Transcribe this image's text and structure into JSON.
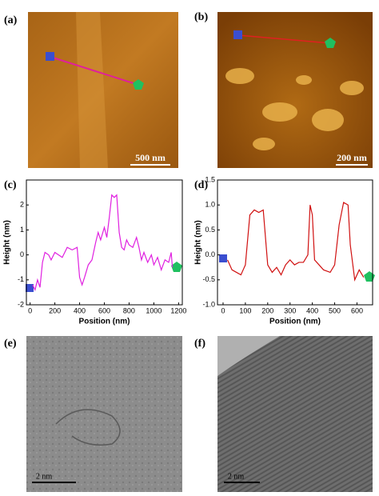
{
  "panels": [
    {
      "label": "(a)",
      "scale_bar": "500 nm"
    },
    {
      "label": "(b)",
      "scale_bar": "200 nm"
    },
    {
      "label": "(c)"
    },
    {
      "label": "(d)"
    },
    {
      "label": "(e)",
      "scale_bar": "2 nm"
    },
    {
      "label": "(f)",
      "scale_bar": "2 nm"
    }
  ],
  "chart_data": [
    {
      "type": "line",
      "xlabel": "Position (nm)",
      "ylabel": "Height (nm)",
      "x": [
        20,
        40,
        60,
        80,
        100,
        120,
        150,
        170,
        200,
        230,
        260,
        300,
        340,
        380,
        400,
        420,
        440,
        470,
        500,
        530,
        550,
        570,
        600,
        620,
        640,
        660,
        680,
        700,
        720,
        740,
        760,
        780,
        800,
        830,
        860,
        880,
        900,
        920,
        950,
        980,
        1000,
        1030,
        1060,
        1090,
        1120,
        1140,
        1150
      ],
      "series": [
        {
          "color": "#e020e0",
          "values": [
            -1.2,
            -1.4,
            -1.0,
            -1.3,
            -0.3,
            0.1,
            0.0,
            -0.2,
            0.1,
            0.0,
            -0.1,
            0.3,
            0.2,
            0.3,
            -0.9,
            -1.2,
            -0.9,
            -0.4,
            -0.2,
            0.5,
            0.9,
            0.6,
            1.1,
            0.7,
            1.5,
            2.4,
            2.3,
            2.4,
            0.9,
            0.3,
            0.2,
            0.6,
            0.4,
            0.3,
            0.7,
            0.3,
            -0.2,
            0.1,
            -0.3,
            0.0,
            -0.4,
            -0.1,
            -0.6,
            -0.2,
            -0.3,
            0.1,
            -0.5
          ]
        }
      ],
      "xlim": [
        -30,
        1230
      ],
      "xticks": [
        0,
        200,
        400,
        600,
        800,
        1000,
        1200
      ],
      "ylim": [
        -2,
        3
      ],
      "yticks": [
        -2,
        -1,
        0,
        1,
        2
      ]
    },
    {
      "type": "line",
      "xlabel": "Position (nm)",
      "ylabel": "Height (nm)",
      "x": [
        20,
        40,
        60,
        80,
        100,
        120,
        140,
        160,
        180,
        200,
        220,
        240,
        260,
        280,
        300,
        320,
        340,
        360,
        380,
        390,
        400,
        410,
        430,
        450,
        480,
        500,
        520,
        540,
        560,
        570,
        590,
        610,
        630
      ],
      "series": [
        {
          "color": "#d01010",
          "values": [
            -0.1,
            -0.3,
            -0.35,
            -0.4,
            -0.2,
            0.8,
            0.9,
            0.85,
            0.9,
            -0.2,
            -0.35,
            -0.25,
            -0.4,
            -0.2,
            -0.1,
            -0.2,
            -0.15,
            -0.15,
            0.0,
            1.0,
            0.8,
            -0.1,
            -0.2,
            -0.3,
            -0.35,
            -0.2,
            0.6,
            1.05,
            1.0,
            0.2,
            -0.5,
            -0.3,
            -0.45
          ]
        }
      ],
      "xlim": [
        -25,
        670
      ],
      "xticks": [
        0,
        100,
        200,
        300,
        400,
        500,
        600
      ],
      "ylim": [
        -1.0,
        1.5
      ],
      "yticks": [
        {
          "value": -1.0,
          "label": "-1.0"
        },
        -0.5,
        {
          "value": 0.0,
          "label": "0.0"
        },
        0.5,
        {
          "value": 1.0,
          "label": "1.0"
        },
        1.5
      ]
    }
  ]
}
